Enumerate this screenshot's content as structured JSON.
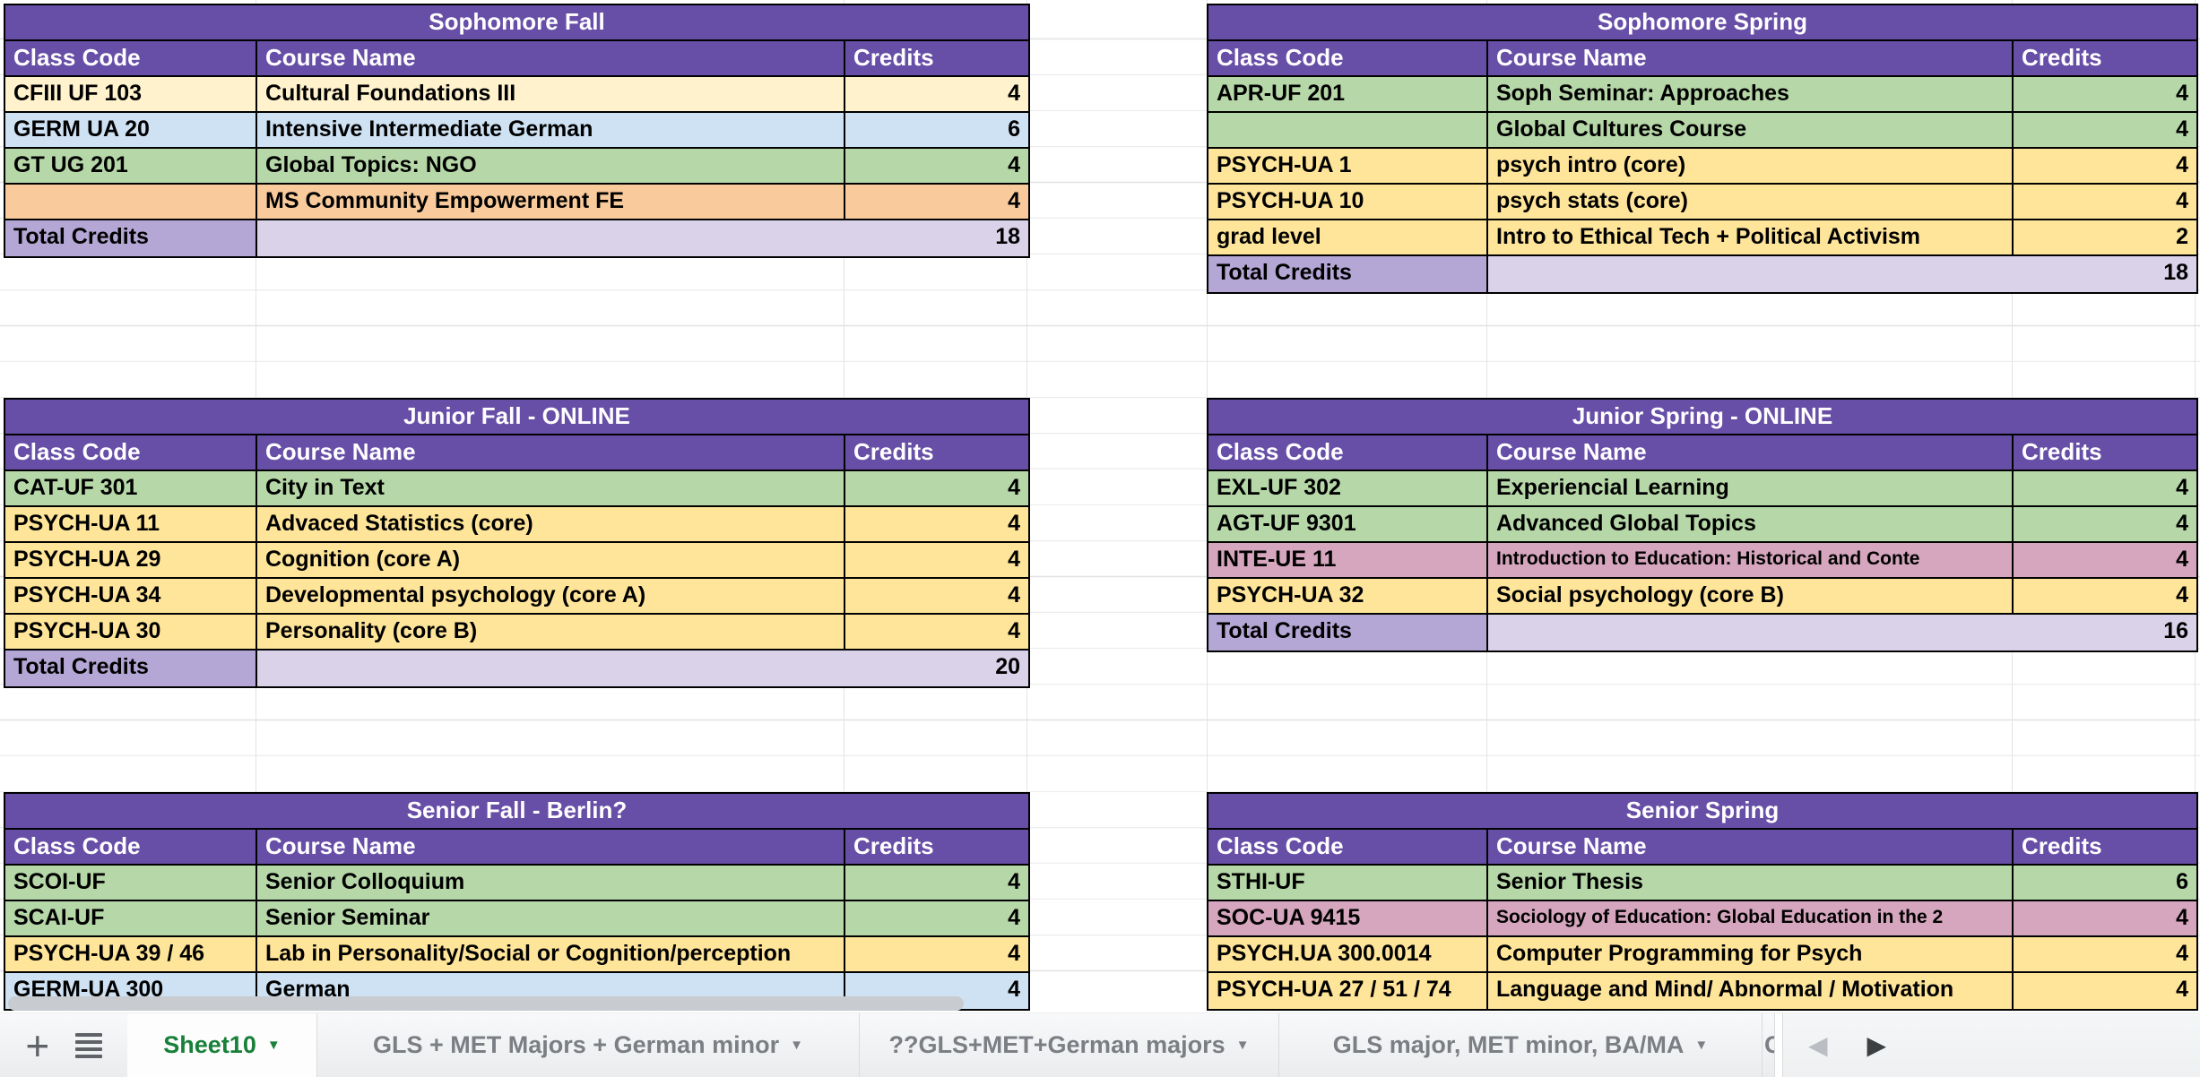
{
  "palette": {
    "header_purple": "#674ea7",
    "total_label_purple": "#b4a7d6",
    "total_row_lavender": "#d9d2e9",
    "green": "#b6d7a8",
    "yellow": "#ffe599",
    "cream": "#fff2cc",
    "blue": "#cfe2f3",
    "orange": "#f9cb9c",
    "pink": "#d5a6bd",
    "grid_line": "#e3e3e3",
    "active_tab_green": "#188038"
  },
  "columns": {
    "class_code": "Class Code",
    "course_name": "Course Name",
    "credits": "Credits"
  },
  "tables": [
    {
      "id": "sophomore-fall",
      "title": "Sophomore Fall",
      "rows": [
        {
          "code": "CFIII UF 103",
          "name": "Cultural Foundations III",
          "credits": "4",
          "color": "cream"
        },
        {
          "code": "GERM UA 20",
          "name": "Intensive Intermediate German",
          "credits": "6",
          "color": "blue"
        },
        {
          "code": "GT UG 201",
          "name": "Global Topics: NGO",
          "credits": "4",
          "color": "green"
        },
        {
          "code": "",
          "name": "MS Community Empowerment FE",
          "credits": "4",
          "color": "orange"
        }
      ],
      "total_label": "Total Credits",
      "total": "18"
    },
    {
      "id": "sophomore-spring",
      "title": "Sophomore Spring",
      "rows": [
        {
          "code": "APR-UF 201",
          "name": "Soph Seminar: Approaches",
          "credits": "4",
          "color": "green"
        },
        {
          "code": "",
          "name": "Global Cultures Course",
          "credits": "4",
          "color": "green"
        },
        {
          "code": "PSYCH-UA 1",
          "name": "psych intro (core)",
          "credits": "4",
          "color": "yellow"
        },
        {
          "code": "PSYCH-UA 10",
          "name": "psych stats (core)",
          "credits": "4",
          "color": "yellow"
        },
        {
          "code": "grad level",
          "name": "Intro to Ethical Tech + Political Activism",
          "credits": "2",
          "color": "yellow"
        }
      ],
      "total_label": "Total Credits",
      "total": "18"
    },
    {
      "id": "junior-fall",
      "title": "Junior Fall - ONLINE",
      "rows": [
        {
          "code": "CAT-UF 301",
          "name": "City in Text",
          "credits": "4",
          "color": "green"
        },
        {
          "code": "PSYCH-UA 11",
          "name": "Advaced Statistics (core)",
          "credits": "4",
          "color": "yellow"
        },
        {
          "code": "PSYCH-UA 29",
          "name": "Cognition (core A)",
          "credits": "4",
          "color": "yellow"
        },
        {
          "code": "PSYCH-UA 34",
          "name": "Developmental psychology (core A)",
          "credits": "4",
          "color": "yellow"
        },
        {
          "code": "PSYCH-UA 30",
          "name": "Personality (core B)",
          "credits": "4",
          "color": "yellow"
        }
      ],
      "total_label": "Total Credits",
      "total": "20"
    },
    {
      "id": "junior-spring",
      "title": "Junior Spring - ONLINE",
      "rows": [
        {
          "code": "EXL-UF 302",
          "name": "Experiencial Learning",
          "credits": "4",
          "color": "green"
        },
        {
          "code": "AGT-UF 9301",
          "name": "Advanced Global Topics",
          "credits": "4",
          "color": "green"
        },
        {
          "code": "INTE-UE 11",
          "name": " Introduction to Education: Historical and Conte",
          "credits": "4",
          "color": "pink",
          "small": true
        },
        {
          "code": "PSYCH-UA 32",
          "name": "Social psychology (core B)",
          "credits": "4",
          "color": "yellow"
        }
      ],
      "total_label": "Total Credits",
      "total": "16"
    },
    {
      "id": "senior-fall",
      "title": "Senior Fall - Berlin?",
      "rows": [
        {
          "code": "SCOI-UF",
          "name": "Senior Colloquium",
          "credits": "4",
          "color": "green"
        },
        {
          "code": "SCAI-UF",
          "name": "Senior Seminar",
          "credits": "4",
          "color": "green"
        },
        {
          "code": "PSYCH-UA 39 / 46",
          "name": "Lab in Personality/Social or  Cognition/perception",
          "credits": "4",
          "color": "yellow"
        },
        {
          "code": "GERM-UA 300",
          "name": "German",
          "credits": "4",
          "color": "blue"
        }
      ]
    },
    {
      "id": "senior-spring",
      "title": "Senior Spring",
      "rows": [
        {
          "code": "STHI-UF",
          "name": "Senior Thesis",
          "credits": "6",
          "color": "green"
        },
        {
          "code": "SOC-UA 9415",
          "name": "Sociology of Education: Global Education in the 2",
          "credits": "4",
          "color": "pink",
          "small": true
        },
        {
          "code": "PSYCH.UA 300.0014",
          "name": "Computer Programming for Psych",
          "credits": "4",
          "color": "yellow"
        },
        {
          "code": "PSYCH-UA 27 / 51 / 74",
          "name": "Language and Mind/ Abnormal / Motivation",
          "credits": "4",
          "color": "yellow"
        }
      ]
    }
  ],
  "tab_bar": {
    "add_label": "+",
    "dropdown_icon": "▼",
    "tabs": [
      {
        "label": "Sheet10",
        "active": true
      },
      {
        "label": "GLS + MET Majors + German minor"
      },
      {
        "label": "??GLS+MET+German majors"
      },
      {
        "label": "GLS major, MET minor, BA/MA"
      },
      {
        "label": "C",
        "clipped": true
      }
    ],
    "nav": {
      "prev": "◀",
      "next": "▶"
    }
  }
}
